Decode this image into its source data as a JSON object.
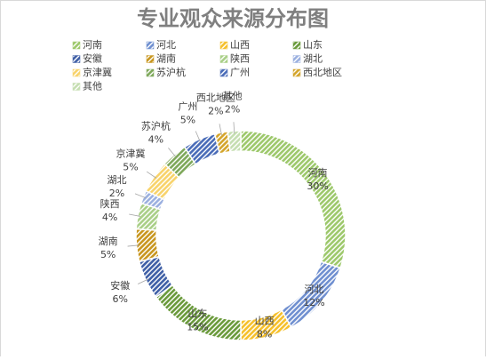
{
  "chart_data": {
    "type": "donut",
    "title": "专业观众来源分布图",
    "categories": [
      "河南",
      "河北",
      "山西",
      "山东",
      "安徽",
      "湖南",
      "陕西",
      "湖北",
      "京津冀",
      "苏沪杭",
      "广州",
      "西北地区",
      "其他"
    ],
    "values": [
      30,
      12,
      8,
      15,
      6,
      5,
      4,
      2,
      5,
      4,
      5,
      2,
      2
    ],
    "value_labels": [
      "30%",
      "12%",
      "8%",
      "15%",
      "6%",
      "5%",
      "4%",
      "2%",
      "5%",
      "4%",
      "5%",
      "2%",
      "2%"
    ],
    "colors": [
      "#9dc86b",
      "#6f8fd0",
      "#f5c02c",
      "#6a9a3b",
      "#3f5fa6",
      "#c8961e",
      "#a9cf87",
      "#9bb0e0",
      "#f8d36b",
      "#7ea85a",
      "#4a6cb8",
      "#d4a52b",
      "#c5deb1"
    ],
    "legend": "top"
  }
}
